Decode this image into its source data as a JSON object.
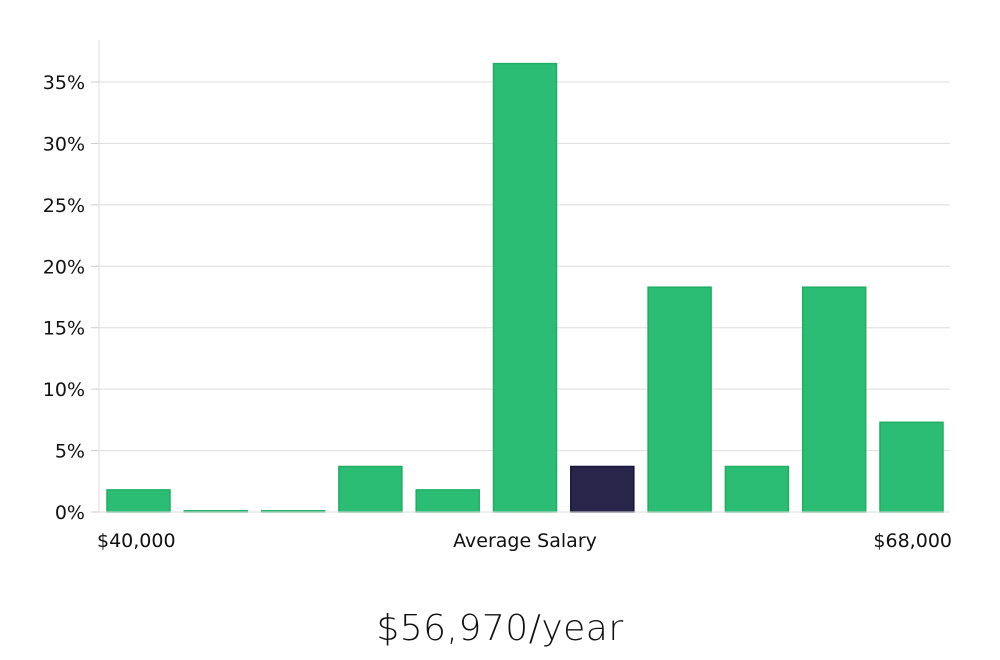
{
  "chart_data": {
    "type": "bar",
    "title": "",
    "xlabel": "Average Salary",
    "ylabel": "",
    "x_min_label": "$40,000",
    "x_max_label": "$68,000",
    "ylim": [
      0,
      38
    ],
    "yticks": [
      0,
      5,
      10,
      15,
      20,
      25,
      30,
      35
    ],
    "ytick_labels": [
      "0%",
      "5%",
      "10%",
      "15%",
      "20%",
      "25%",
      "30%",
      "35%"
    ],
    "values": [
      1.8,
      0.1,
      0.1,
      3.7,
      1.8,
      36.5,
      3.7,
      18.3,
      3.7,
      18.3,
      7.3
    ],
    "highlight_index": 6,
    "grid": true
  },
  "headline": "$56,970/year",
  "colors": {
    "bar": "#2bbd74",
    "bar_stroke": "#1fae63",
    "highlight": "#29254a",
    "grid": "#dddddd",
    "axis": "#cccccc"
  }
}
